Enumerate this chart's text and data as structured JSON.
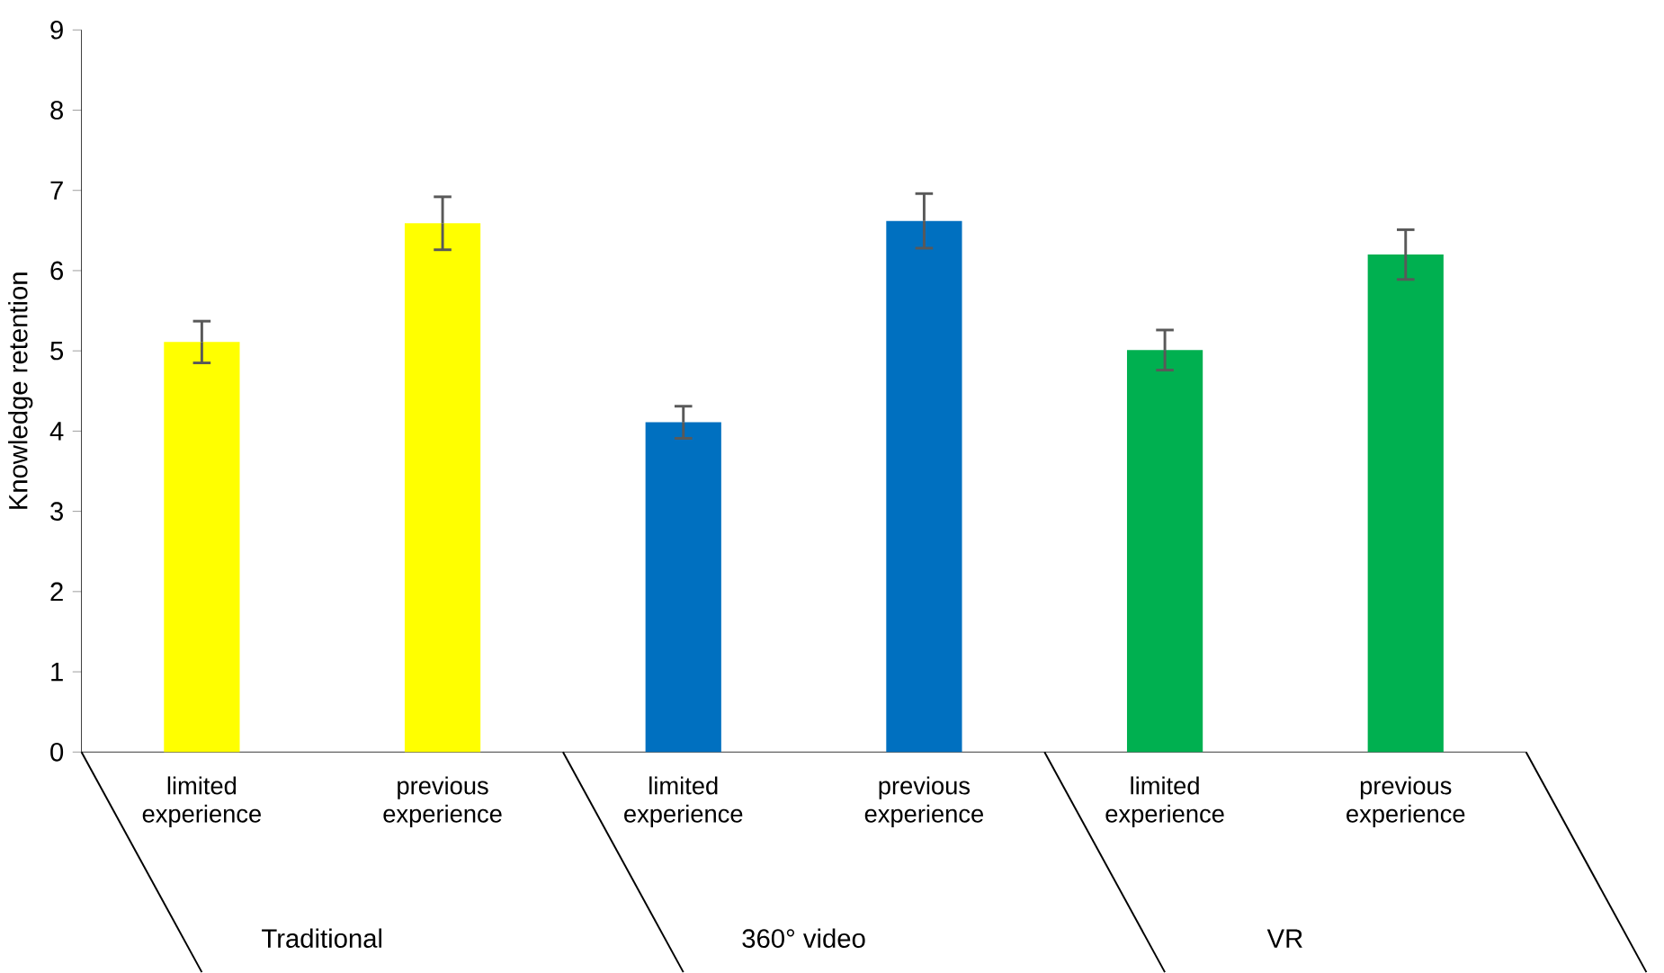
{
  "chart_data": {
    "type": "bar",
    "ylabel": "Knowledge retention",
    "categories": [
      "limited experience",
      "previous experience",
      "limited experience",
      "previous experience",
      "limited experience",
      "previous experience"
    ],
    "values": [
      5.11,
      6.59,
      4.11,
      6.62,
      5.01,
      6.2
    ],
    "errors": [
      0.26,
      0.33,
      0.2,
      0.34,
      0.25,
      0.31
    ],
    "colors": [
      "#ffff00",
      "#ffff00",
      "#0070c0",
      "#0070c0",
      "#00b050",
      "#00b050"
    ],
    "ylim": [
      0,
      9
    ],
    "yticks": [
      0,
      1,
      2,
      3,
      4,
      5,
      6,
      7,
      8,
      9
    ],
    "annotations": [
      "Traditional",
      "360° video",
      "VR"
    ]
  }
}
